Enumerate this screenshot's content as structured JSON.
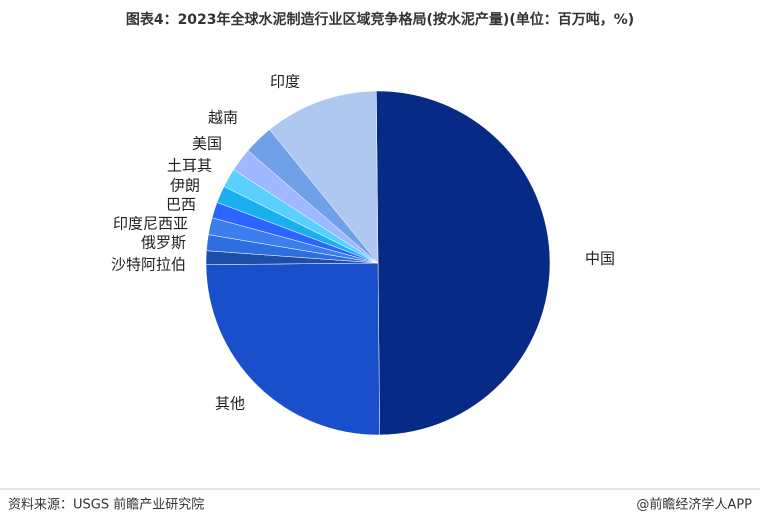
{
  "chart_data": {
    "type": "pie",
    "title": "图表4：2023年全球水泥制造行业区域竞争格局(按水泥产量)(单位：百万吨，%)",
    "categories": [
      "中国",
      "其他",
      "沙特阿拉伯",
      "俄罗斯",
      "印度尼西亚",
      "巴西",
      "伊朗",
      "土耳其",
      "美国",
      "越南",
      "印度"
    ],
    "values": [
      50,
      25,
      1.3,
      1.5,
      1.6,
      1.5,
      1.6,
      1.8,
      2.2,
      2.8,
      10.7
    ],
    "colors": [
      "#062a86",
      "#1a4fcc",
      "#1d4ea8",
      "#2d6fe0",
      "#3a7ef0",
      "#2c64ff",
      "#1ab0ef",
      "#5ad0ff",
      "#a0b8ff",
      "#6fa0e8",
      "#aec8f0"
    ]
  },
  "source": "资料来源：USGS 前瞻产业研究院",
  "footer": "@前瞻经济学人APP"
}
